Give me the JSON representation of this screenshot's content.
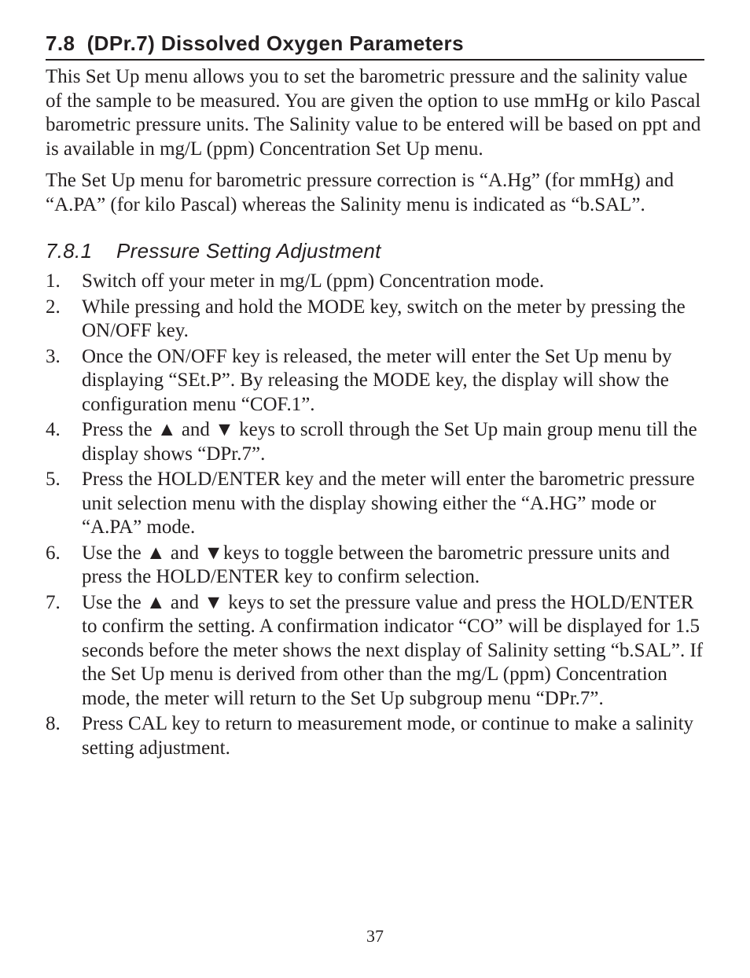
{
  "section": {
    "number": "7.8",
    "code": "(DPr.7)",
    "title": "Dissolved Oxygen Parameters"
  },
  "intro_p1": "This Set Up menu allows you to set the barometric pressure and the salinity value of the sample to be measured. You are given the option to use mmHg or kilo Pascal barometric pressure units. The Salinity value to be entered will be based on ppt and is available in mg/L (ppm) Concentration Set Up menu.",
  "intro_p2": "The Set Up menu for barometric pressure correction is “A.Hg” (for mmHg) and “A.PA” (for kilo Pascal) whereas the Salinity menu is indicated as “b.SAL”.",
  "subsection": {
    "number": "7.8.1",
    "title": "Pressure Setting Adjustment"
  },
  "steps": [
    "Switch off your meter in mg/L (ppm) Concentration mode.",
    "While pressing and hold the MODE key, switch on the meter by pressing the ON/OFF key.",
    "Once the ON/OFF key is released, the meter will enter the Set Up menu by displaying “SEt.P”. By releasing the MODE key, the display will show the configuration menu “COF.1”.",
    "Press the ▲ and ▼ keys to scroll through the Set Up main group menu till the display shows “DPr.7”.",
    "Press the HOLD/ENTER key and the meter will enter the barometric pressure unit selection menu with the display showing either the “A.HG” mode or “A.PA” mode.",
    "Use the ▲ and ▼keys to toggle between the barometric pressure units and press the HOLD/ENTER key to confirm selection.",
    "Use the ▲ and ▼ keys to set the pressure value and press the HOLD/ENTER to confirm the setting. A confirmation indicator “CO” will be displayed for 1.5 seconds before the meter shows the next display of Salinity setting “b.SAL”. If the Set Up menu is derived from other than the mg/L (ppm) Concentration mode, the meter will return to the Set Up subgroup menu “DPr.7”.",
    "Press CAL key to return to measurement mode, or continue to make a salinity setting adjustment."
  ],
  "page_number": "37",
  "colors": {
    "text": "#231f20",
    "rule": "#231f20",
    "background": "#ffffff"
  },
  "typography": {
    "heading_family": "Futura / Century Gothic",
    "body_family": "Adobe Caslon / Garamond",
    "heading_size_pt": 20,
    "body_size_pt": 19,
    "subheading_italic": true
  }
}
